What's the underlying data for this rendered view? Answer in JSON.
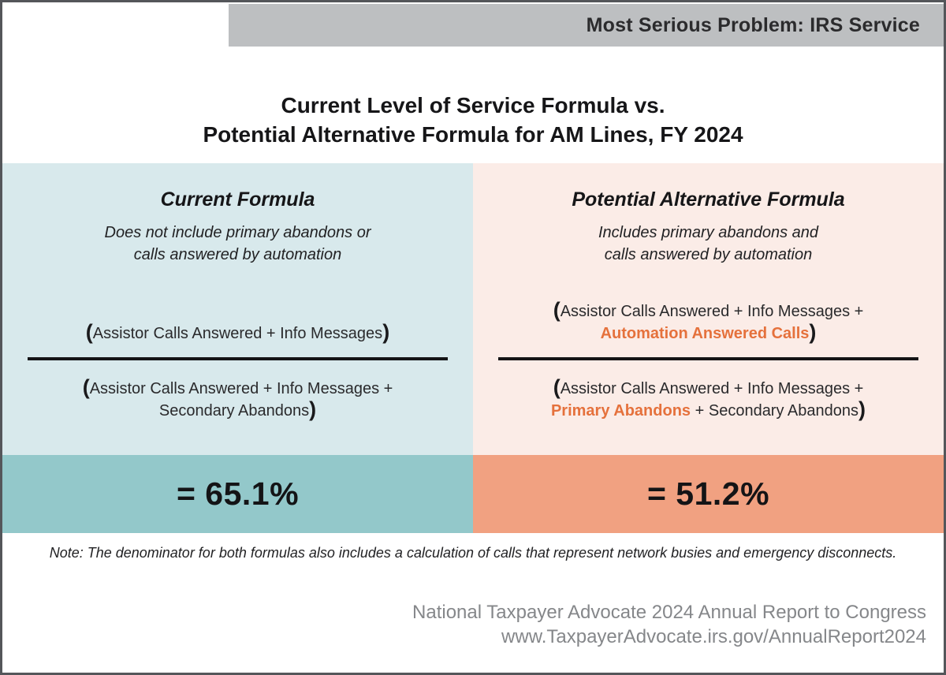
{
  "banner": {
    "title": "Most Serious Problem: IRS Service"
  },
  "title": {
    "line1": "Current Level of Service Formula vs.",
    "line2": "Potential Alternative Formula for AM Lines, FY 2024"
  },
  "symbols": {
    "open_paren": "(",
    "close_paren": ")"
  },
  "panels": {
    "current": {
      "heading": "Current Formula",
      "subtitle_line1": "Does not include primary abandons or",
      "subtitle_line2": "calls answered by automation",
      "numerator": "Assistor Calls Answered + Info Messages",
      "denominator_line1": "Assistor Calls Answered + Info Messages +",
      "denominator_line2": "Secondary Abandons",
      "result": "= 65.1%"
    },
    "alternative": {
      "heading": "Potential Alternative Formula",
      "subtitle_line1": "Includes primary abandons and",
      "subtitle_line2": "calls answered by automation",
      "numerator_line1": "Assistor Calls Answered + Info Messages +",
      "numerator_highlight": "Automation Answered Calls",
      "denominator_line1": "Assistor Calls Answered + Info Messages +",
      "denominator_highlight": "Primary Abandons",
      "denominator_rest": " + Secondary Abandons",
      "result": "= 51.2%"
    }
  },
  "note": "Note: The denominator for both formulas also includes a calculation of calls that represent network busies and emergency disconnects.",
  "footer": {
    "line1": "National Taxpayer Advocate 2024 Annual Report to Congress",
    "line2": "www.TaxpayerAdvocate.irs.gov/AnnualReport2024"
  },
  "colors": {
    "current_panel": "#d8e9ec",
    "alternative_panel": "#fbece7",
    "current_result_bar": "#93c8ca",
    "alternative_result_bar": "#f1a181",
    "highlight_text": "#e5713c",
    "banner_background": "#bdbfc1",
    "page_border": "#54565a"
  }
}
